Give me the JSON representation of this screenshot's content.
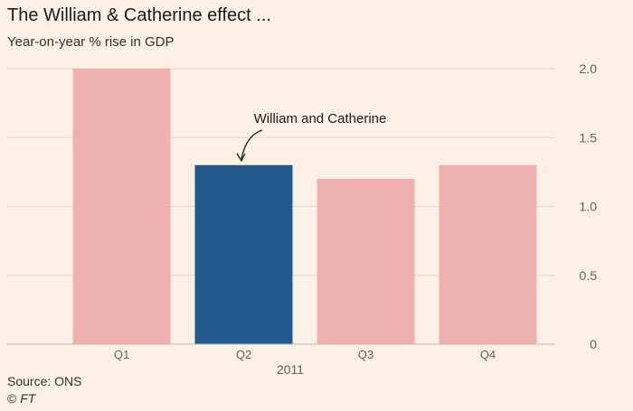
{
  "chart_data": {
    "type": "bar",
    "title": "The William & Catherine effect ...",
    "subtitle": "Year-on-year % rise in GDP",
    "categories": [
      "Q1",
      "Q2",
      "Q3",
      "Q4"
    ],
    "values": [
      2.0,
      1.3,
      1.2,
      1.3
    ],
    "highlight_index": 1,
    "xlabel": "2011",
    "ylabel": "",
    "ylim": [
      0,
      2.0
    ],
    "yticks": [
      0,
      0.5,
      1.0,
      1.5,
      2.0
    ],
    "ytick_labels": [
      "0",
      "0.5",
      "1.0",
      "1.5",
      "2.0"
    ],
    "grid": true,
    "y_axis_side": "right",
    "annotation": {
      "text": "William and Catherine",
      "target_index": 1
    },
    "colors": {
      "bar": "#eeb0b1",
      "highlight": "#235a8e",
      "grid": "#e3d8cd",
      "background": "#fdf1e6",
      "text": "#66605c"
    }
  },
  "footer": {
    "source": "Source: ONS",
    "copyright_symbol": "©",
    "copyright_brand": "FT"
  }
}
